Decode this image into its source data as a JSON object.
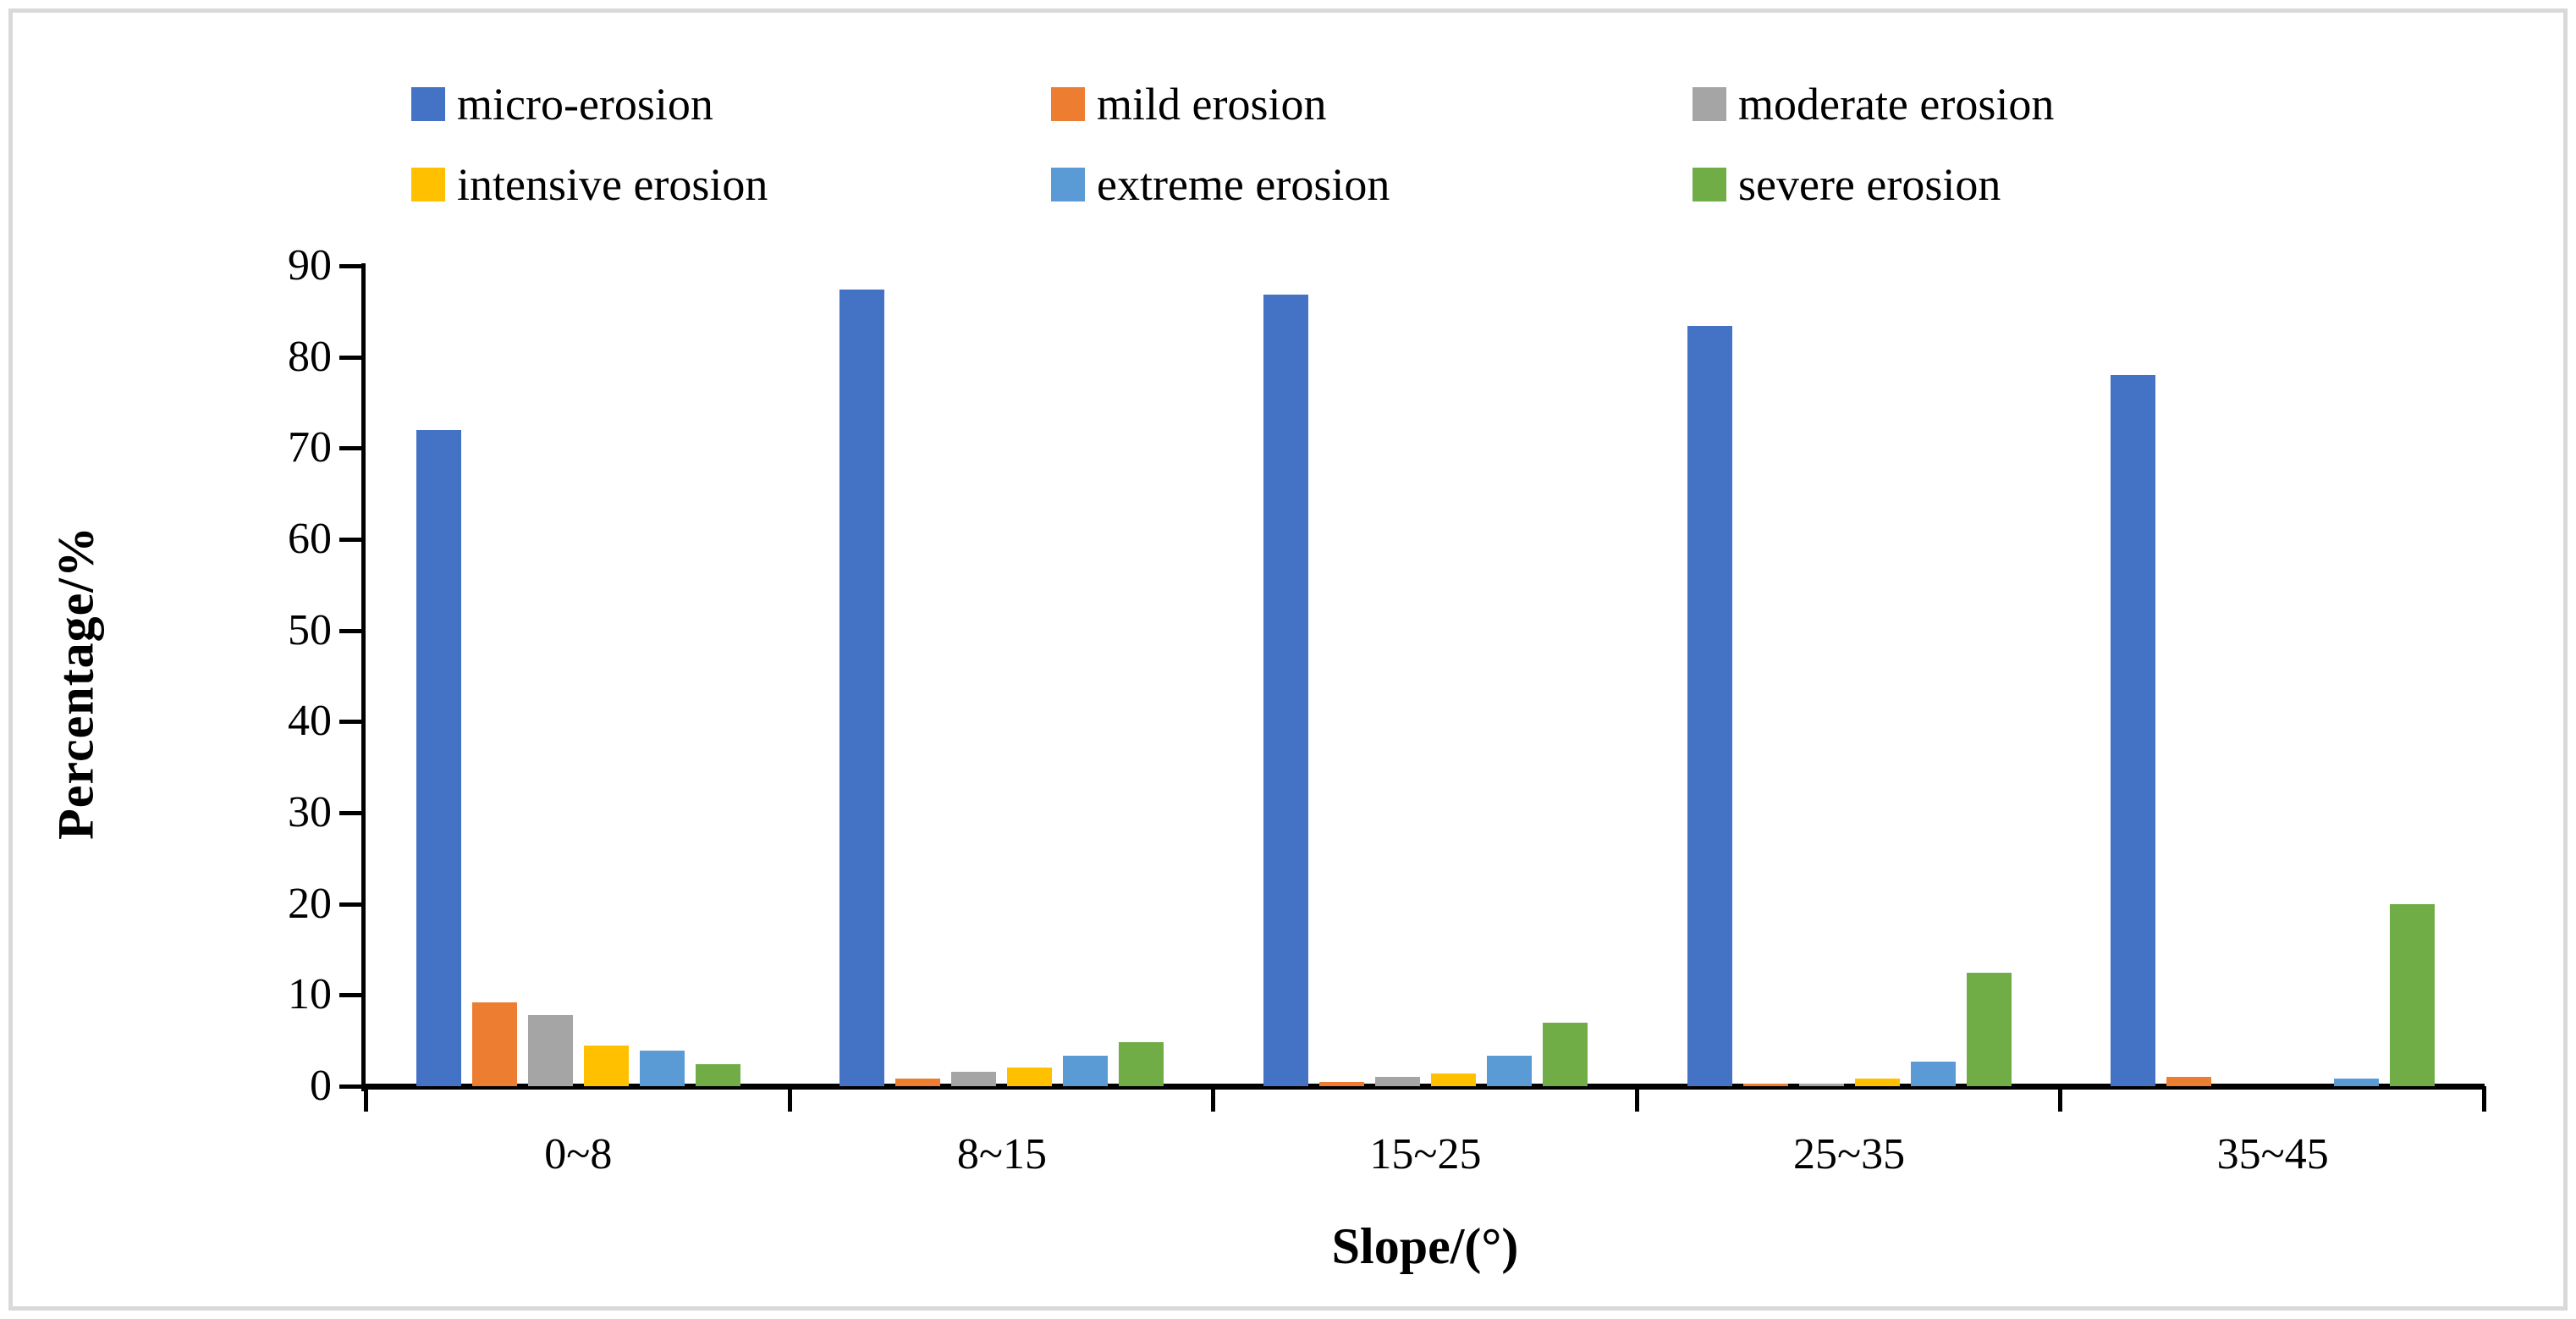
{
  "figure": {
    "background": "#FFFFFF",
    "border_color": "#D9D9D9"
  },
  "chart_data": {
    "type": "bar",
    "title": "",
    "xlabel": "Slope/(°)",
    "ylabel": "Percentage/%",
    "categories": [
      "0~8",
      "8~15",
      "15~25",
      "25~35",
      "35~45"
    ],
    "series": [
      {
        "name": "micro-erosion",
        "color": "#4472C4",
        "values": [
          72.0,
          87.4,
          86.8,
          83.4,
          78.0
        ]
      },
      {
        "name": "mild erosion",
        "color": "#ED7D31",
        "values": [
          9.2,
          0.8,
          0.5,
          0.3,
          1.0
        ]
      },
      {
        "name": "moderate erosion",
        "color": "#A5A5A5",
        "values": [
          7.8,
          1.6,
          1.0,
          0.3,
          0.0
        ]
      },
      {
        "name": "intensive erosion",
        "color": "#FFC000",
        "values": [
          4.5,
          2.0,
          1.4,
          0.8,
          0.0
        ]
      },
      {
        "name": "extreme erosion",
        "color": "#5B9BD5",
        "values": [
          3.9,
          3.3,
          3.3,
          2.7,
          0.8
        ]
      },
      {
        "name": "severe erosion",
        "color": "#70AD47",
        "values": [
          2.4,
          4.8,
          7.0,
          12.4,
          20.0
        ]
      }
    ],
    "y_ticks": [
      0,
      10,
      20,
      30,
      40,
      50,
      60,
      70,
      80,
      90
    ],
    "ylim": [
      0,
      90
    ],
    "grid": false,
    "legend_position": "top",
    "legend_rows": 2,
    "legend_columns": 3
  }
}
